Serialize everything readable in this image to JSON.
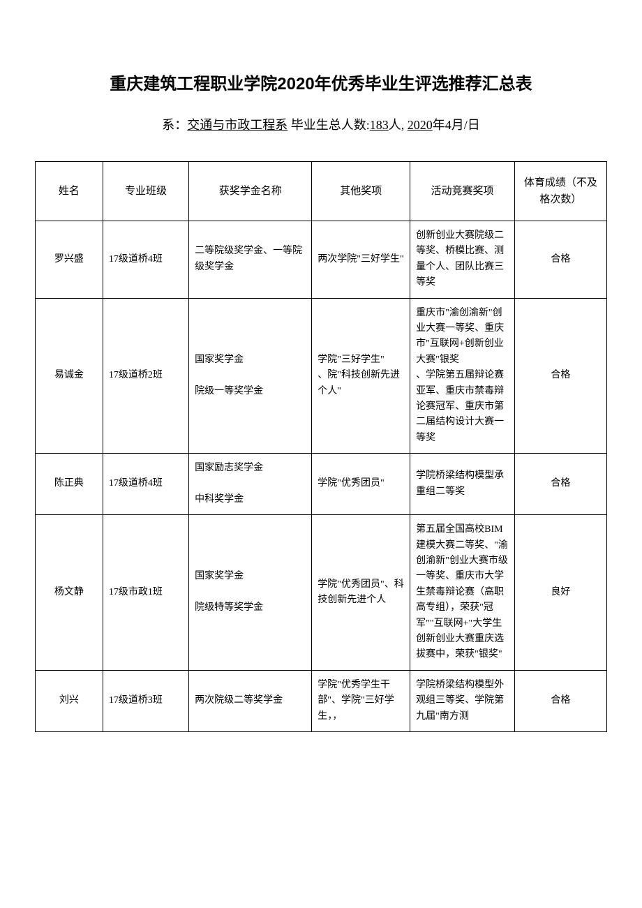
{
  "title": "重庆建筑工程职业学院2020年优秀毕业生评选推荐汇总表",
  "subtitle": {
    "prefix": "系：",
    "department": "交通与市政工程系",
    "label_count": " 毕业生总人数:",
    "count": "183",
    "count_suffix": "人, ",
    "year": "2020",
    "date_suffix": "年4月/日"
  },
  "headers": {
    "name": "姓名",
    "class": "专业班级",
    "scholarship": "获奖学金名称",
    "other": "其他奖项",
    "activity": "活动竞赛奖项",
    "pe": "体育成绩（不及格次数）"
  },
  "rows": [
    {
      "name": "罗兴盛",
      "class": "17级道桥4班",
      "scholarship": "二等院级奖学金、一等院级奖学金",
      "other": "两次学院\"三好学生\"",
      "activity": "创新创业大赛院级二等奖、桥模比赛、测量个人、团队比赛三等奖",
      "pe": "合格"
    },
    {
      "name": "易诚金",
      "class": "17级道桥2班",
      "scholarship": "国家奖学金\n\n院级一等奖学金",
      "other": "学院\"三好学生\"\n、院\"科技创新先进个人\"",
      "activity": "重庆市\"渝创渝新\"创业大赛一等奖、重庆市\"互联网+创新创业大赛\"银奖\n、学院第五届辩论赛亚军、重庆市禁毒辩论赛冠军、重庆市第二届结构设计大赛一等奖",
      "pe": "合格"
    },
    {
      "name": "陈正典",
      "class": "17级道桥4班",
      "scholarship": "国家励志奖学金\n\n中科奖学金",
      "other": "学院\"优秀团员\"",
      "activity": "学院桥梁结构模型承重组二等奖",
      "pe": "合格"
    },
    {
      "name": "杨文静",
      "class": "17级市政1班",
      "scholarship": "国家奖学金\n\n院级特等奖学金",
      "other": "学院\"优秀团员\"、科技创新先进个人",
      "activity": "第五届全国高校BIM建模大赛二等奖、\"渝创渝新\"创业大赛市级一等奖、重庆市大学生禁毒辩论赛（高职高专组），荣获\"冠军\"\"互联网+\"大学生创新创业大赛重庆选拔赛中，荣获\"银奖\"",
      "pe": "良好"
    },
    {
      "name": "刘兴",
      "class": "17级道桥3班",
      "scholarship": "两次院级二等奖学金",
      "other": "学院\"优秀学生干部\"、学院\"三好学生，，",
      "activity": "学院桥梁结构模型外观组三等奖、学院第九届\"南方测",
      "pe": "合格"
    }
  ]
}
